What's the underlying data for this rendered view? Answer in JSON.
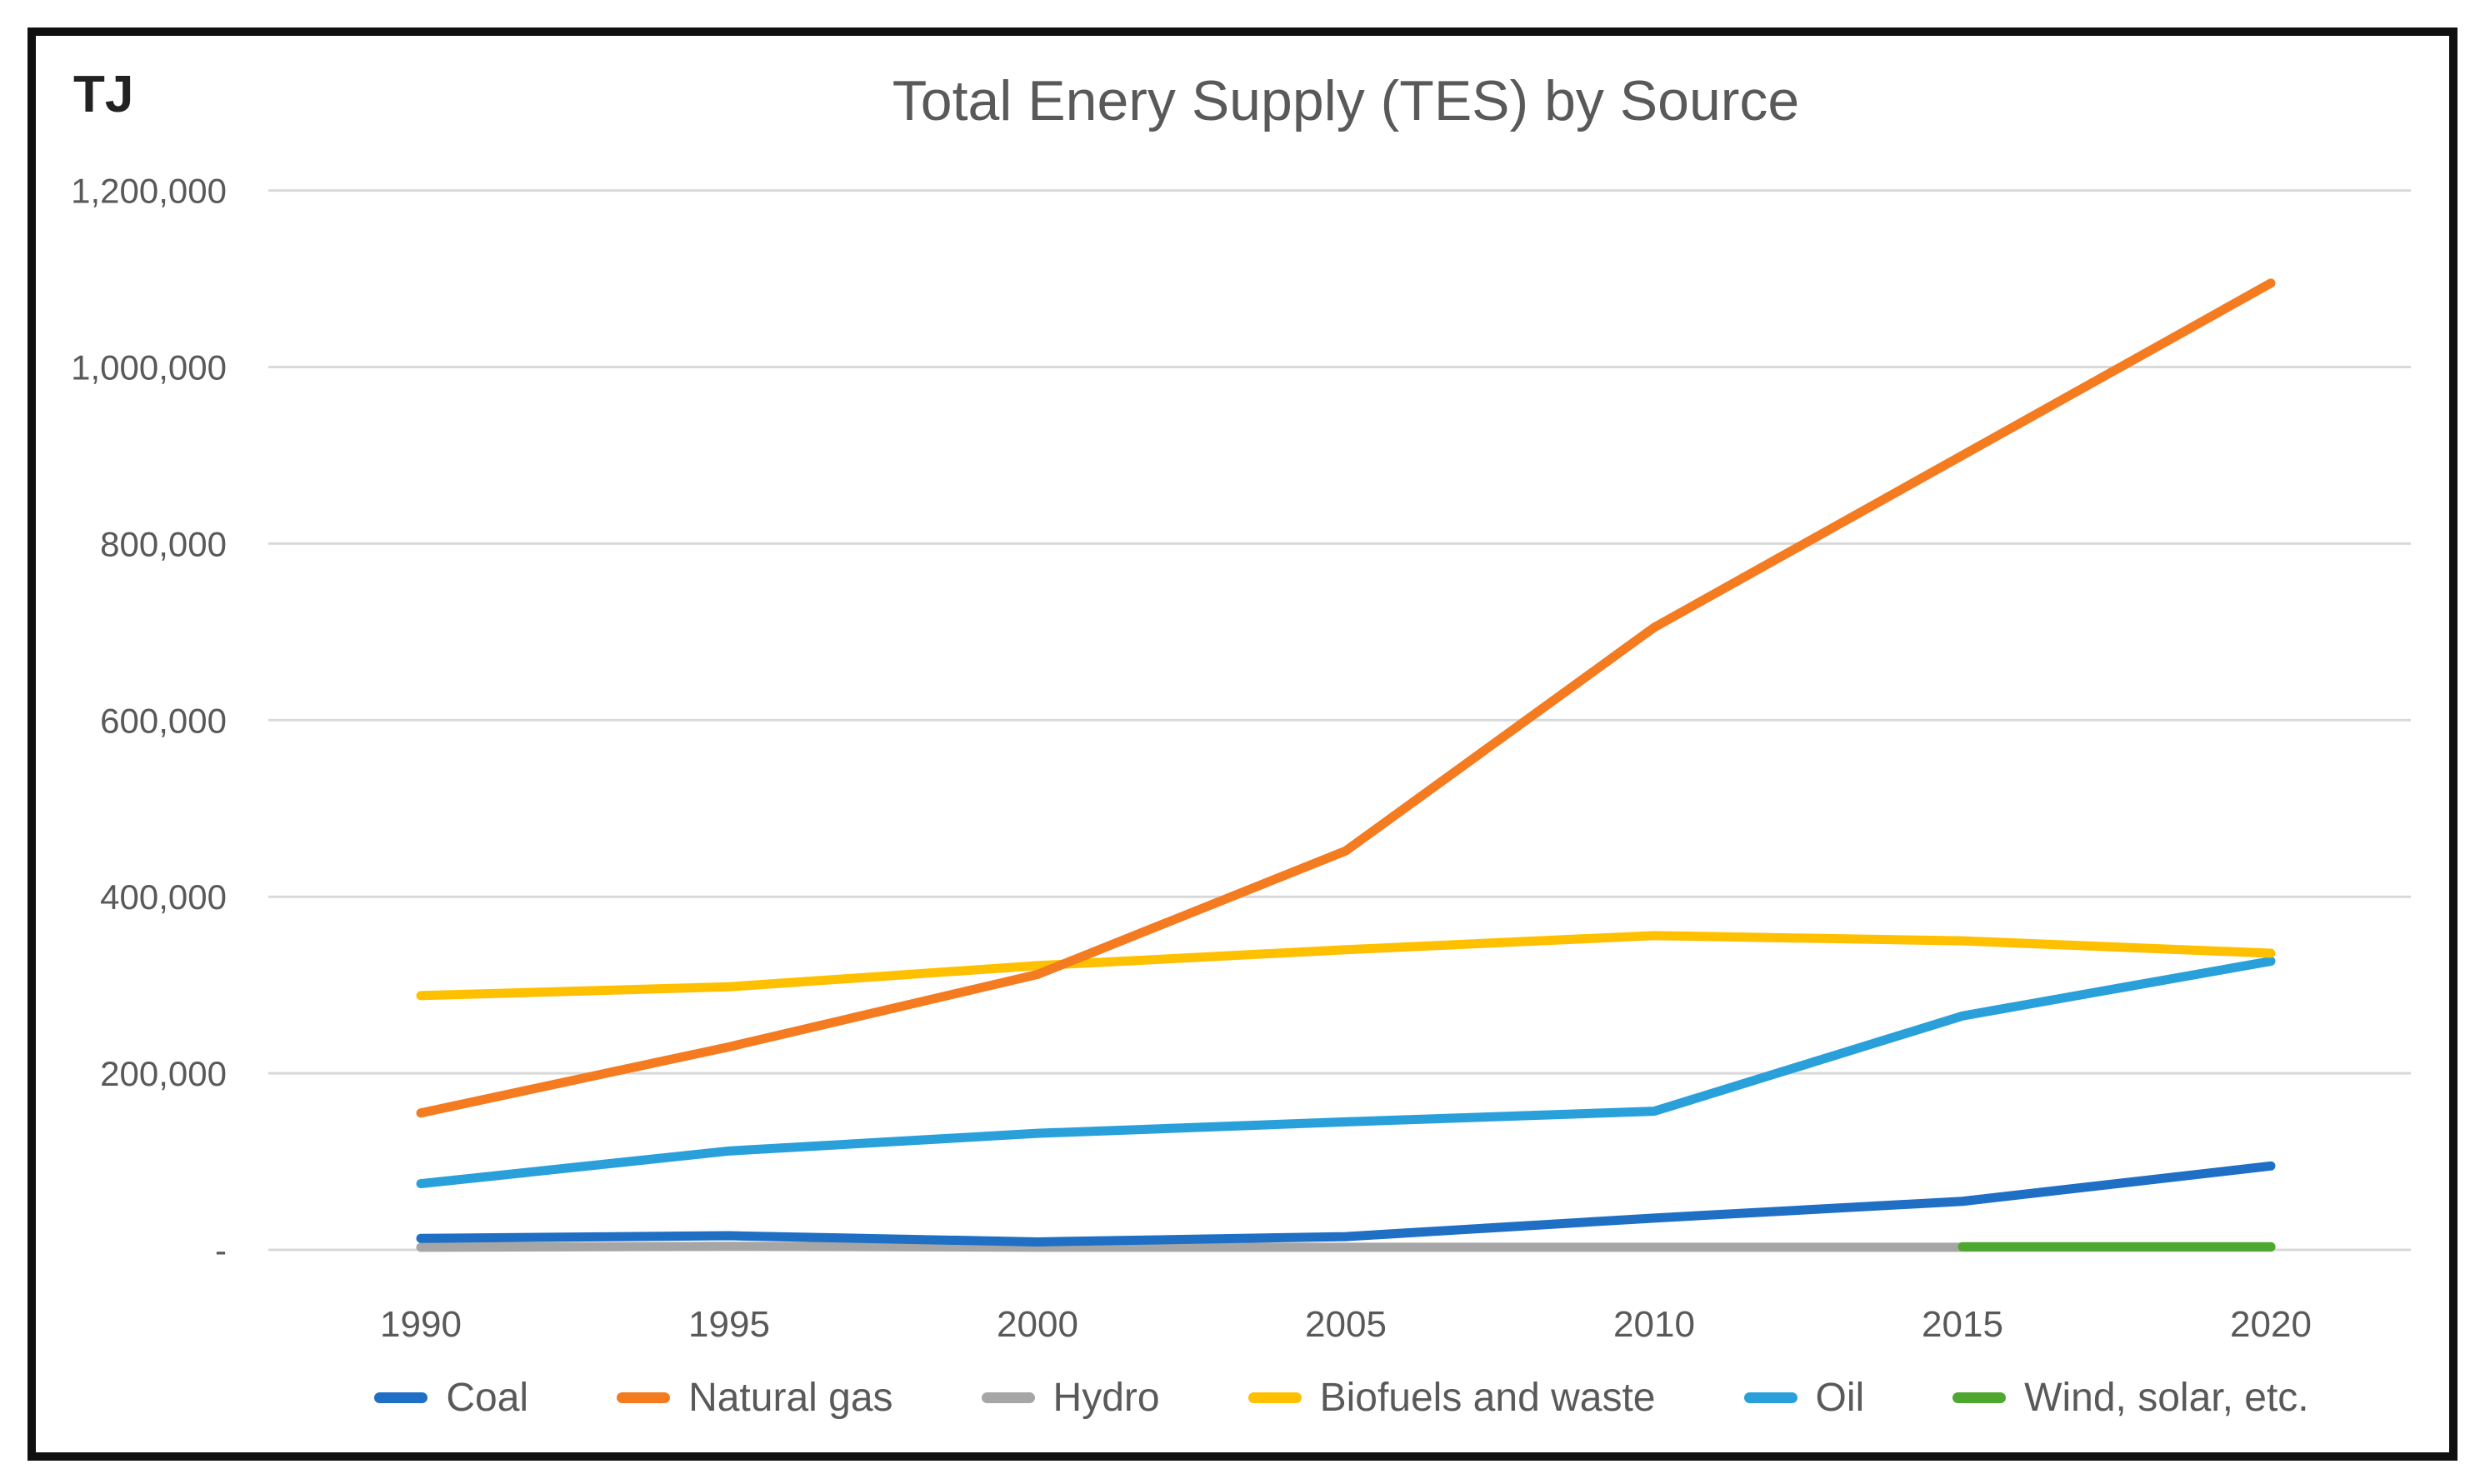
{
  "chart_data": {
    "type": "line",
    "title": "Total Enery Supply (TES) by Source",
    "unit": "TJ",
    "xlabel": "",
    "ylabel": "TJ",
    "categories": [
      "1990",
      "1995",
      "2000",
      "2005",
      "2010",
      "2015",
      "2020"
    ],
    "ylim": [
      0,
      1200000
    ],
    "y_tick_step": 200000,
    "y_zero_label": "-",
    "grid": true,
    "legend_position": "bottom",
    "axis_text_color": "#595959",
    "gridline_color": "#D9D9D9",
    "series": [
      {
        "name": "Coal",
        "color": "#1F6FC5",
        "values": [
          13000,
          16000,
          9000,
          15000,
          36000,
          55000,
          95000
        ]
      },
      {
        "name": "Natural gas",
        "color": "#F47B20",
        "values": [
          155000,
          230000,
          312000,
          452000,
          705000,
          900000,
          1095000
        ]
      },
      {
        "name": "Hydro",
        "color": "#A6A6A6",
        "values": [
          3000,
          4000,
          3000,
          3000,
          3000,
          3000,
          3000
        ]
      },
      {
        "name": "Biofuels and waste",
        "color": "#FFC000",
        "values": [
          288000,
          298000,
          322000,
          340000,
          356000,
          350000,
          336000
        ]
      },
      {
        "name": "Oil",
        "color": "#29A0DA",
        "values": [
          75000,
          112000,
          132000,
          145000,
          157000,
          265000,
          327000
        ]
      },
      {
        "name": "Wind, solar, etc.",
        "color": "#4EA72E",
        "values": [
          null,
          null,
          null,
          null,
          null,
          3500,
          3500
        ]
      }
    ]
  }
}
